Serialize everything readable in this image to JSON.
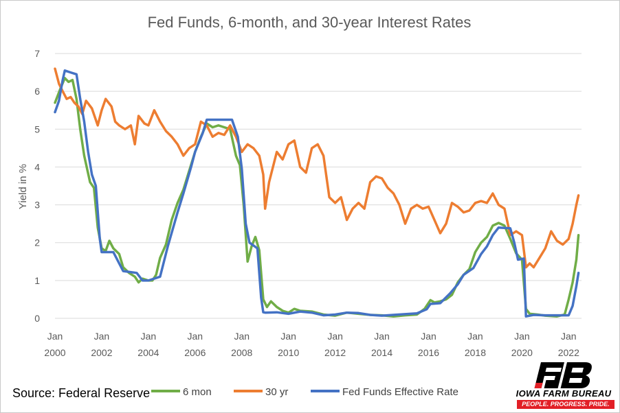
{
  "source_text": "Source: Federal Reserve",
  "logo": {
    "name": "IOWA FARM BUREAU",
    "tagline": "PEOPLE. PROGRESS. PRIDE."
  },
  "chart_data": {
    "type": "line",
    "title": "Fed Funds, 6-month, and 30-year Interest Rates",
    "xlabel": "",
    "ylabel": "Yield in %",
    "xlim": [
      2000.0,
      2022.55
    ],
    "ylim": [
      0,
      7
    ],
    "yticks": [
      0,
      1,
      2,
      3,
      4,
      5,
      6,
      7
    ],
    "xticks": [
      {
        "x": 2000,
        "label": [
          "Jan",
          "2000"
        ]
      },
      {
        "x": 2002,
        "label": [
          "Jan",
          "2002"
        ]
      },
      {
        "x": 2004,
        "label": [
          "Jan",
          "2004"
        ]
      },
      {
        "x": 2006,
        "label": [
          "Jan",
          "2006"
        ]
      },
      {
        "x": 2008,
        "label": [
          "Jan",
          "2008"
        ]
      },
      {
        "x": 2010,
        "label": [
          "Jan",
          "2010"
        ]
      },
      {
        "x": 2012,
        "label": [
          "Jan",
          "2012"
        ]
      },
      {
        "x": 2014,
        "label": [
          "Jan",
          "2014"
        ]
      },
      {
        "x": 2016,
        "label": [
          "Jan",
          "2016"
        ]
      },
      {
        "x": 2018,
        "label": [
          "Jan",
          "2018"
        ]
      },
      {
        "x": 2020,
        "label": [
          "Jan",
          "2020"
        ]
      },
      {
        "x": 2022,
        "label": [
          "Jan",
          "2022"
        ]
      }
    ],
    "grid": true,
    "legend": "bottom",
    "series": [
      {
        "name": "6 mon",
        "color": "#70ad47",
        "points": [
          [
            2000.0,
            5.7
          ],
          [
            2000.25,
            6.1
          ],
          [
            2000.42,
            6.35
          ],
          [
            2000.58,
            6.25
          ],
          [
            2000.75,
            6.3
          ],
          [
            2000.92,
            5.8
          ],
          [
            2001.08,
            5.0
          ],
          [
            2001.25,
            4.3
          ],
          [
            2001.5,
            3.6
          ],
          [
            2001.67,
            3.45
          ],
          [
            2001.83,
            2.4
          ],
          [
            2002.0,
            1.85
          ],
          [
            2002.17,
            1.78
          ],
          [
            2002.33,
            2.05
          ],
          [
            2002.5,
            1.85
          ],
          [
            2002.75,
            1.7
          ],
          [
            2002.92,
            1.35
          ],
          [
            2003.17,
            1.2
          ],
          [
            2003.42,
            1.1
          ],
          [
            2003.58,
            0.95
          ],
          [
            2003.75,
            1.05
          ],
          [
            2004.0,
            1.0
          ],
          [
            2004.17,
            1.0
          ],
          [
            2004.33,
            1.15
          ],
          [
            2004.5,
            1.6
          ],
          [
            2004.75,
            1.95
          ],
          [
            2005.0,
            2.6
          ],
          [
            2005.25,
            3.05
          ],
          [
            2005.5,
            3.4
          ],
          [
            2005.75,
            3.9
          ],
          [
            2006.0,
            4.4
          ],
          [
            2006.25,
            4.8
          ],
          [
            2006.5,
            5.15
          ],
          [
            2006.75,
            5.05
          ],
          [
            2007.0,
            5.1
          ],
          [
            2007.25,
            5.05
          ],
          [
            2007.5,
            5.0
          ],
          [
            2007.75,
            4.3
          ],
          [
            2007.92,
            4.05
          ],
          [
            2008.08,
            3.0
          ],
          [
            2008.25,
            1.5
          ],
          [
            2008.42,
            1.9
          ],
          [
            2008.58,
            2.15
          ],
          [
            2008.75,
            1.8
          ],
          [
            2008.92,
            0.5
          ],
          [
            2009.08,
            0.3
          ],
          [
            2009.25,
            0.45
          ],
          [
            2009.5,
            0.3
          ],
          [
            2009.75,
            0.2
          ],
          [
            2010.0,
            0.15
          ],
          [
            2010.25,
            0.25
          ],
          [
            2010.5,
            0.2
          ],
          [
            2011.0,
            0.18
          ],
          [
            2011.5,
            0.1
          ],
          [
            2012.0,
            0.07
          ],
          [
            2012.5,
            0.15
          ],
          [
            2013.0,
            0.12
          ],
          [
            2013.5,
            0.09
          ],
          [
            2014.0,
            0.08
          ],
          [
            2014.5,
            0.05
          ],
          [
            2015.0,
            0.08
          ],
          [
            2015.5,
            0.1
          ],
          [
            2015.83,
            0.25
          ],
          [
            2016.08,
            0.48
          ],
          [
            2016.25,
            0.42
          ],
          [
            2016.5,
            0.45
          ],
          [
            2016.75,
            0.5
          ],
          [
            2017.0,
            0.62
          ],
          [
            2017.25,
            0.95
          ],
          [
            2017.5,
            1.15
          ],
          [
            2017.75,
            1.3
          ],
          [
            2018.0,
            1.75
          ],
          [
            2018.25,
            2.0
          ],
          [
            2018.5,
            2.15
          ],
          [
            2018.75,
            2.45
          ],
          [
            2019.0,
            2.52
          ],
          [
            2019.25,
            2.45
          ],
          [
            2019.5,
            2.1
          ],
          [
            2019.75,
            1.72
          ],
          [
            2020.0,
            1.55
          ],
          [
            2020.17,
            0.25
          ],
          [
            2020.33,
            0.12
          ],
          [
            2020.67,
            0.1
          ],
          [
            2021.0,
            0.07
          ],
          [
            2021.5,
            0.05
          ],
          [
            2021.83,
            0.1
          ],
          [
            2022.0,
            0.5
          ],
          [
            2022.17,
            0.95
          ],
          [
            2022.33,
            1.55
          ],
          [
            2022.42,
            2.2
          ]
        ]
      },
      {
        "name": "30 yr",
        "color": "#ed7d31",
        "points": [
          [
            2000.0,
            6.6
          ],
          [
            2000.17,
            6.2
          ],
          [
            2000.33,
            6.0
          ],
          [
            2000.5,
            5.8
          ],
          [
            2000.67,
            5.85
          ],
          [
            2000.83,
            5.7
          ],
          [
            2001.0,
            5.6
          ],
          [
            2001.17,
            5.4
          ],
          [
            2001.33,
            5.75
          ],
          [
            2001.58,
            5.55
          ],
          [
            2001.83,
            5.1
          ],
          [
            2002.0,
            5.5
          ],
          [
            2002.17,
            5.8
          ],
          [
            2002.42,
            5.6
          ],
          [
            2002.58,
            5.2
          ],
          [
            2002.75,
            5.1
          ],
          [
            2003.0,
            5.0
          ],
          [
            2003.25,
            5.1
          ],
          [
            2003.42,
            4.6
          ],
          [
            2003.58,
            5.35
          ],
          [
            2003.83,
            5.15
          ],
          [
            2004.0,
            5.1
          ],
          [
            2004.25,
            5.5
          ],
          [
            2004.5,
            5.2
          ],
          [
            2004.75,
            4.95
          ],
          [
            2005.0,
            4.8
          ],
          [
            2005.25,
            4.6
          ],
          [
            2005.5,
            4.3
          ],
          [
            2005.75,
            4.5
          ],
          [
            2006.0,
            4.6
          ],
          [
            2006.25,
            5.2
          ],
          [
            2006.5,
            5.1
          ],
          [
            2006.75,
            4.8
          ],
          [
            2007.0,
            4.9
          ],
          [
            2007.25,
            4.85
          ],
          [
            2007.5,
            5.1
          ],
          [
            2007.75,
            4.8
          ],
          [
            2008.0,
            4.4
          ],
          [
            2008.25,
            4.6
          ],
          [
            2008.5,
            4.5
          ],
          [
            2008.75,
            4.3
          ],
          [
            2008.92,
            3.8
          ],
          [
            2009.0,
            2.9
          ],
          [
            2009.17,
            3.6
          ],
          [
            2009.5,
            4.4
          ],
          [
            2009.75,
            4.2
          ],
          [
            2010.0,
            4.6
          ],
          [
            2010.25,
            4.7
          ],
          [
            2010.5,
            4.0
          ],
          [
            2010.75,
            3.85
          ],
          [
            2011.0,
            4.5
          ],
          [
            2011.25,
            4.6
          ],
          [
            2011.5,
            4.3
          ],
          [
            2011.75,
            3.2
          ],
          [
            2012.0,
            3.05
          ],
          [
            2012.25,
            3.2
          ],
          [
            2012.5,
            2.6
          ],
          [
            2012.75,
            2.9
          ],
          [
            2013.0,
            3.05
          ],
          [
            2013.25,
            2.9
          ],
          [
            2013.5,
            3.6
          ],
          [
            2013.75,
            3.75
          ],
          [
            2014.0,
            3.7
          ],
          [
            2014.25,
            3.45
          ],
          [
            2014.5,
            3.3
          ],
          [
            2014.75,
            3.0
          ],
          [
            2015.0,
            2.5
          ],
          [
            2015.25,
            2.9
          ],
          [
            2015.5,
            3.0
          ],
          [
            2015.75,
            2.9
          ],
          [
            2016.0,
            2.95
          ],
          [
            2016.25,
            2.6
          ],
          [
            2016.5,
            2.25
          ],
          [
            2016.75,
            2.5
          ],
          [
            2017.0,
            3.05
          ],
          [
            2017.25,
            2.95
          ],
          [
            2017.5,
            2.8
          ],
          [
            2017.75,
            2.85
          ],
          [
            2018.0,
            3.05
          ],
          [
            2018.25,
            3.1
          ],
          [
            2018.5,
            3.05
          ],
          [
            2018.75,
            3.3
          ],
          [
            2019.0,
            3.0
          ],
          [
            2019.25,
            2.9
          ],
          [
            2019.5,
            2.2
          ],
          [
            2019.75,
            2.3
          ],
          [
            2020.0,
            2.2
          ],
          [
            2020.17,
            1.35
          ],
          [
            2020.33,
            1.45
          ],
          [
            2020.5,
            1.35
          ],
          [
            2020.75,
            1.6
          ],
          [
            2021.0,
            1.85
          ],
          [
            2021.25,
            2.3
          ],
          [
            2021.5,
            2.05
          ],
          [
            2021.75,
            1.95
          ],
          [
            2022.0,
            2.1
          ],
          [
            2022.17,
            2.5
          ],
          [
            2022.33,
            3.0
          ],
          [
            2022.42,
            3.25
          ]
        ]
      },
      {
        "name": "Fed Funds Effective Rate",
        "color": "#4472c4",
        "points": [
          [
            2000.0,
            5.45
          ],
          [
            2000.17,
            5.75
          ],
          [
            2000.33,
            6.3
          ],
          [
            2000.42,
            6.55
          ],
          [
            2000.67,
            6.5
          ],
          [
            2000.92,
            6.45
          ],
          [
            2001.08,
            5.8
          ],
          [
            2001.25,
            5.2
          ],
          [
            2001.42,
            4.4
          ],
          [
            2001.58,
            3.8
          ],
          [
            2001.75,
            3.5
          ],
          [
            2001.92,
            2.1
          ],
          [
            2002.0,
            1.75
          ],
          [
            2002.5,
            1.75
          ],
          [
            2002.92,
            1.25
          ],
          [
            2003.5,
            1.2
          ],
          [
            2003.75,
            1.0
          ],
          [
            2004.0,
            1.0
          ],
          [
            2004.5,
            1.1
          ],
          [
            2004.83,
            1.9
          ],
          [
            2005.25,
            2.8
          ],
          [
            2005.5,
            3.3
          ],
          [
            2005.83,
            4.0
          ],
          [
            2006.0,
            4.4
          ],
          [
            2006.33,
            4.9
          ],
          [
            2006.5,
            5.25
          ],
          [
            2007.58,
            5.25
          ],
          [
            2007.83,
            4.8
          ],
          [
            2008.0,
            3.95
          ],
          [
            2008.17,
            2.5
          ],
          [
            2008.33,
            2.0
          ],
          [
            2008.67,
            1.85
          ],
          [
            2008.83,
            0.55
          ],
          [
            2008.92,
            0.16
          ],
          [
            2009.0,
            0.15
          ],
          [
            2009.5,
            0.16
          ],
          [
            2010.0,
            0.12
          ],
          [
            2010.5,
            0.18
          ],
          [
            2011.0,
            0.15
          ],
          [
            2011.5,
            0.08
          ],
          [
            2012.0,
            0.1
          ],
          [
            2012.5,
            0.15
          ],
          [
            2013.0,
            0.14
          ],
          [
            2013.5,
            0.09
          ],
          [
            2014.0,
            0.07
          ],
          [
            2014.5,
            0.09
          ],
          [
            2015.0,
            0.11
          ],
          [
            2015.5,
            0.13
          ],
          [
            2015.92,
            0.24
          ],
          [
            2016.08,
            0.38
          ],
          [
            2016.5,
            0.4
          ],
          [
            2016.92,
            0.66
          ],
          [
            2017.25,
            0.9
          ],
          [
            2017.5,
            1.15
          ],
          [
            2017.92,
            1.33
          ],
          [
            2018.25,
            1.7
          ],
          [
            2018.5,
            1.9
          ],
          [
            2018.75,
            2.2
          ],
          [
            2019.0,
            2.4
          ],
          [
            2019.5,
            2.38
          ],
          [
            2019.67,
            2.0
          ],
          [
            2019.83,
            1.55
          ],
          [
            2020.08,
            1.58
          ],
          [
            2020.17,
            0.05
          ],
          [
            2020.5,
            0.09
          ],
          [
            2021.0,
            0.08
          ],
          [
            2021.5,
            0.08
          ],
          [
            2022.0,
            0.08
          ],
          [
            2022.17,
            0.33
          ],
          [
            2022.33,
            0.85
          ],
          [
            2022.42,
            1.2
          ]
        ]
      }
    ]
  }
}
